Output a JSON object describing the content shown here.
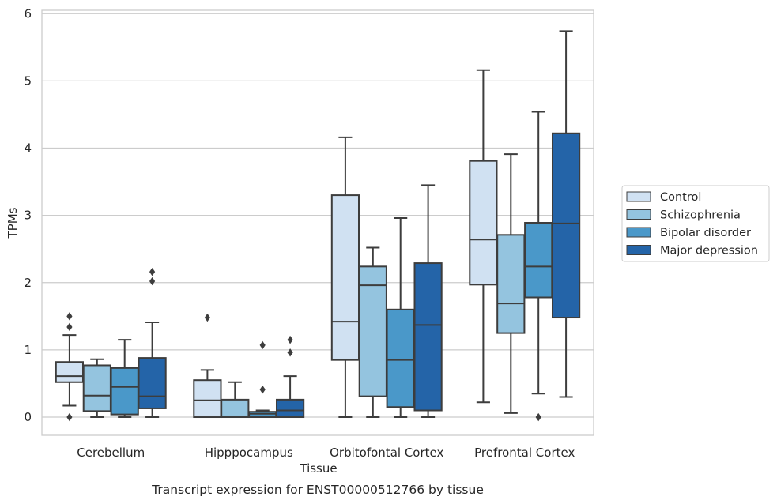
{
  "chart_data": {
    "type": "box",
    "caption": "Transcript expression for ENST00000512766 by tissue",
    "xlabel": "Tissue",
    "ylabel": "TPMs",
    "ylim": [
      -0.27,
      6.05
    ],
    "yticks": [
      0,
      1,
      2,
      3,
      4,
      5,
      6
    ],
    "grid": "horizontal",
    "legend_position": "outside-right",
    "categories": [
      "Cerebellum",
      "Hipppocampus",
      "Orbitofontal Cortex",
      "Prefrontal Cortex"
    ],
    "series": [
      {
        "name": "Control",
        "color": "#d0e1f2",
        "boxes": [
          {
            "whisker_low": 0.17,
            "q1": 0.52,
            "median": 0.61,
            "q3": 0.82,
            "whisker_high": 1.22,
            "outliers": [
              0.0,
              1.34,
              1.5
            ]
          },
          {
            "whisker_low": 0.0,
            "q1": 0.0,
            "median": 0.25,
            "q3": 0.55,
            "whisker_high": 0.7,
            "outliers": [
              1.48
            ]
          },
          {
            "whisker_low": 0.0,
            "q1": 0.85,
            "median": 1.42,
            "q3": 3.3,
            "whisker_high": 4.16,
            "outliers": []
          },
          {
            "whisker_low": 0.22,
            "q1": 1.97,
            "median": 2.64,
            "q3": 3.81,
            "whisker_high": 5.16,
            "outliers": []
          }
        ]
      },
      {
        "name": "Schizophrenia",
        "color": "#94c4df",
        "boxes": [
          {
            "whisker_low": 0.0,
            "q1": 0.09,
            "median": 0.32,
            "q3": 0.77,
            "whisker_high": 0.86,
            "outliers": []
          },
          {
            "whisker_low": 0.0,
            "q1": 0.0,
            "median": 0.0,
            "q3": 0.26,
            "whisker_high": 0.52,
            "outliers": []
          },
          {
            "whisker_low": 0.0,
            "q1": 0.31,
            "median": 1.96,
            "q3": 2.24,
            "whisker_high": 2.52,
            "outliers": []
          },
          {
            "whisker_low": 0.06,
            "q1": 1.25,
            "median": 1.69,
            "q3": 2.71,
            "whisker_high": 3.91,
            "outliers": []
          }
        ]
      },
      {
        "name": "Bipolar disorder",
        "color": "#4a98c9",
        "boxes": [
          {
            "whisker_low": 0.0,
            "q1": 0.04,
            "median": 0.45,
            "q3": 0.73,
            "whisker_high": 1.15,
            "outliers": []
          },
          {
            "whisker_low": 0.0,
            "q1": 0.0,
            "median": 0.05,
            "q3": 0.08,
            "whisker_high": 0.1,
            "outliers": [
              0.41,
              1.07
            ]
          },
          {
            "whisker_low": 0.0,
            "q1": 0.15,
            "median": 0.85,
            "q3": 1.6,
            "whisker_high": 2.96,
            "outliers": []
          },
          {
            "whisker_low": 0.35,
            "q1": 1.78,
            "median": 2.24,
            "q3": 2.89,
            "whisker_high": 4.54,
            "outliers": [
              0.0
            ]
          }
        ]
      },
      {
        "name": "Major depression",
        "color": "#2464a8",
        "boxes": [
          {
            "whisker_low": 0.0,
            "q1": 0.13,
            "median": 0.31,
            "q3": 0.88,
            "whisker_high": 1.41,
            "outliers": [
              2.02,
              2.16
            ]
          },
          {
            "whisker_low": 0.0,
            "q1": 0.0,
            "median": 0.1,
            "q3": 0.26,
            "whisker_high": 0.61,
            "outliers": [
              0.96,
              1.15
            ]
          },
          {
            "whisker_low": 0.0,
            "q1": 0.1,
            "median": 1.37,
            "q3": 2.29,
            "whisker_high": 3.45,
            "outliers": []
          },
          {
            "whisker_low": 0.3,
            "q1": 1.48,
            "median": 2.88,
            "q3": 4.22,
            "whisker_high": 5.74,
            "outliers": []
          }
        ]
      }
    ]
  }
}
